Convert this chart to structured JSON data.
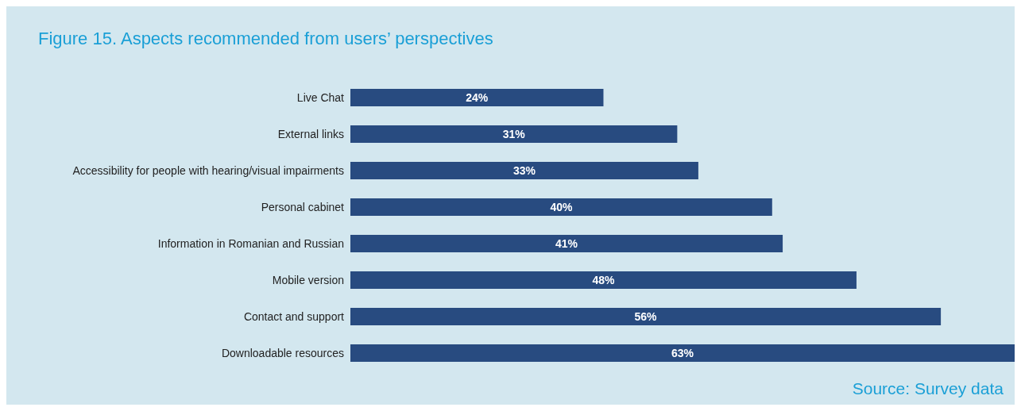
{
  "chart_data": {
    "type": "bar",
    "orientation": "horizontal",
    "title": "Figure 15. Aspects recommended from users’ perspectives",
    "categories": [
      "Live Chat",
      "External links",
      "Accessibility for people with hearing/visual impairments",
      "Personal cabinet",
      "Information in Romanian and Russian",
      "Mobile version",
      "Contact and support",
      "Downloadable resources"
    ],
    "values": [
      24,
      31,
      33,
      40,
      41,
      48,
      56,
      63
    ],
    "value_labels": [
      "24%",
      "31%",
      "33%",
      "40%",
      "41%",
      "48%",
      "56%",
      "63%"
    ],
    "color": "#284b80",
    "tick_labels": "y",
    "annotations": [
      "Source: Survey data"
    ]
  }
}
